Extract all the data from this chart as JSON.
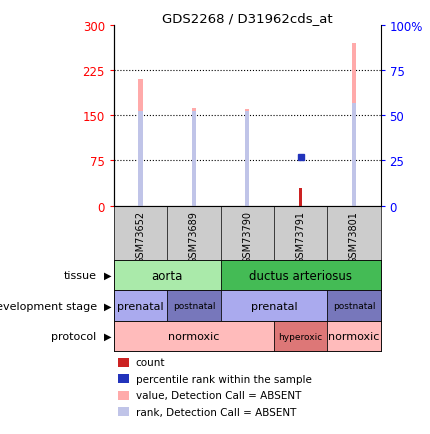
{
  "title": "GDS2268 / D31962cds_at",
  "samples": [
    "GSM73652",
    "GSM73689",
    "GSM73790",
    "GSM73791",
    "GSM73801"
  ],
  "value_heights": [
    210,
    163,
    160,
    0,
    270
  ],
  "rank_heights": [
    157,
    157,
    157,
    0,
    170
  ],
  "count_heights": [
    0,
    0,
    0,
    30,
    0
  ],
  "pct_rank_right": [
    0,
    0,
    0,
    27,
    0
  ],
  "left_yticks": [
    0,
    75,
    150,
    225,
    300
  ],
  "left_ylabels": [
    "0",
    "75",
    "150",
    "225",
    "300"
  ],
  "right_yticks": [
    0,
    25,
    50,
    75,
    100
  ],
  "right_ylabels": [
    "0",
    "25",
    "50",
    "75",
    "100%"
  ],
  "tissue_data": [
    {
      "label": "aorta",
      "span": [
        0,
        2
      ],
      "color": "#aaeaaa"
    },
    {
      "label": "ductus arteriosus",
      "span": [
        2,
        5
      ],
      "color": "#44bb55"
    }
  ],
  "dev_stage_data": [
    {
      "label": "prenatal",
      "span": [
        0,
        1
      ],
      "color": "#aaaaee"
    },
    {
      "label": "postnatal",
      "span": [
        1,
        2
      ],
      "color": "#7777bb"
    },
    {
      "label": "prenatal",
      "span": [
        2,
        4
      ],
      "color": "#aaaaee"
    },
    {
      "label": "postnatal",
      "span": [
        4,
        5
      ],
      "color": "#7777bb"
    }
  ],
  "protocol_data": [
    {
      "label": "normoxic",
      "span": [
        0,
        3
      ],
      "color": "#ffbbbb"
    },
    {
      "label": "hyperoxic",
      "span": [
        3,
        4
      ],
      "color": "#dd7777"
    },
    {
      "label": "normoxic",
      "span": [
        4,
        5
      ],
      "color": "#ffbbbb"
    }
  ],
  "row_labels": [
    "tissue",
    "development stage",
    "protocol"
  ],
  "color_value_bar": "#ffaaaa",
  "color_rank_marker": "#c0c4e8",
  "color_count": "#cc2222",
  "color_pct_rank": "#2233bb",
  "sample_band_color": "#cccccc",
  "legend_items": [
    {
      "color": "#cc2222",
      "label": "count"
    },
    {
      "color": "#2233bb",
      "label": "percentile rank within the sample"
    },
    {
      "color": "#ffaaaa",
      "label": "value, Detection Call = ABSENT"
    },
    {
      "color": "#c0c4e8",
      "label": "rank, Detection Call = ABSENT"
    }
  ]
}
